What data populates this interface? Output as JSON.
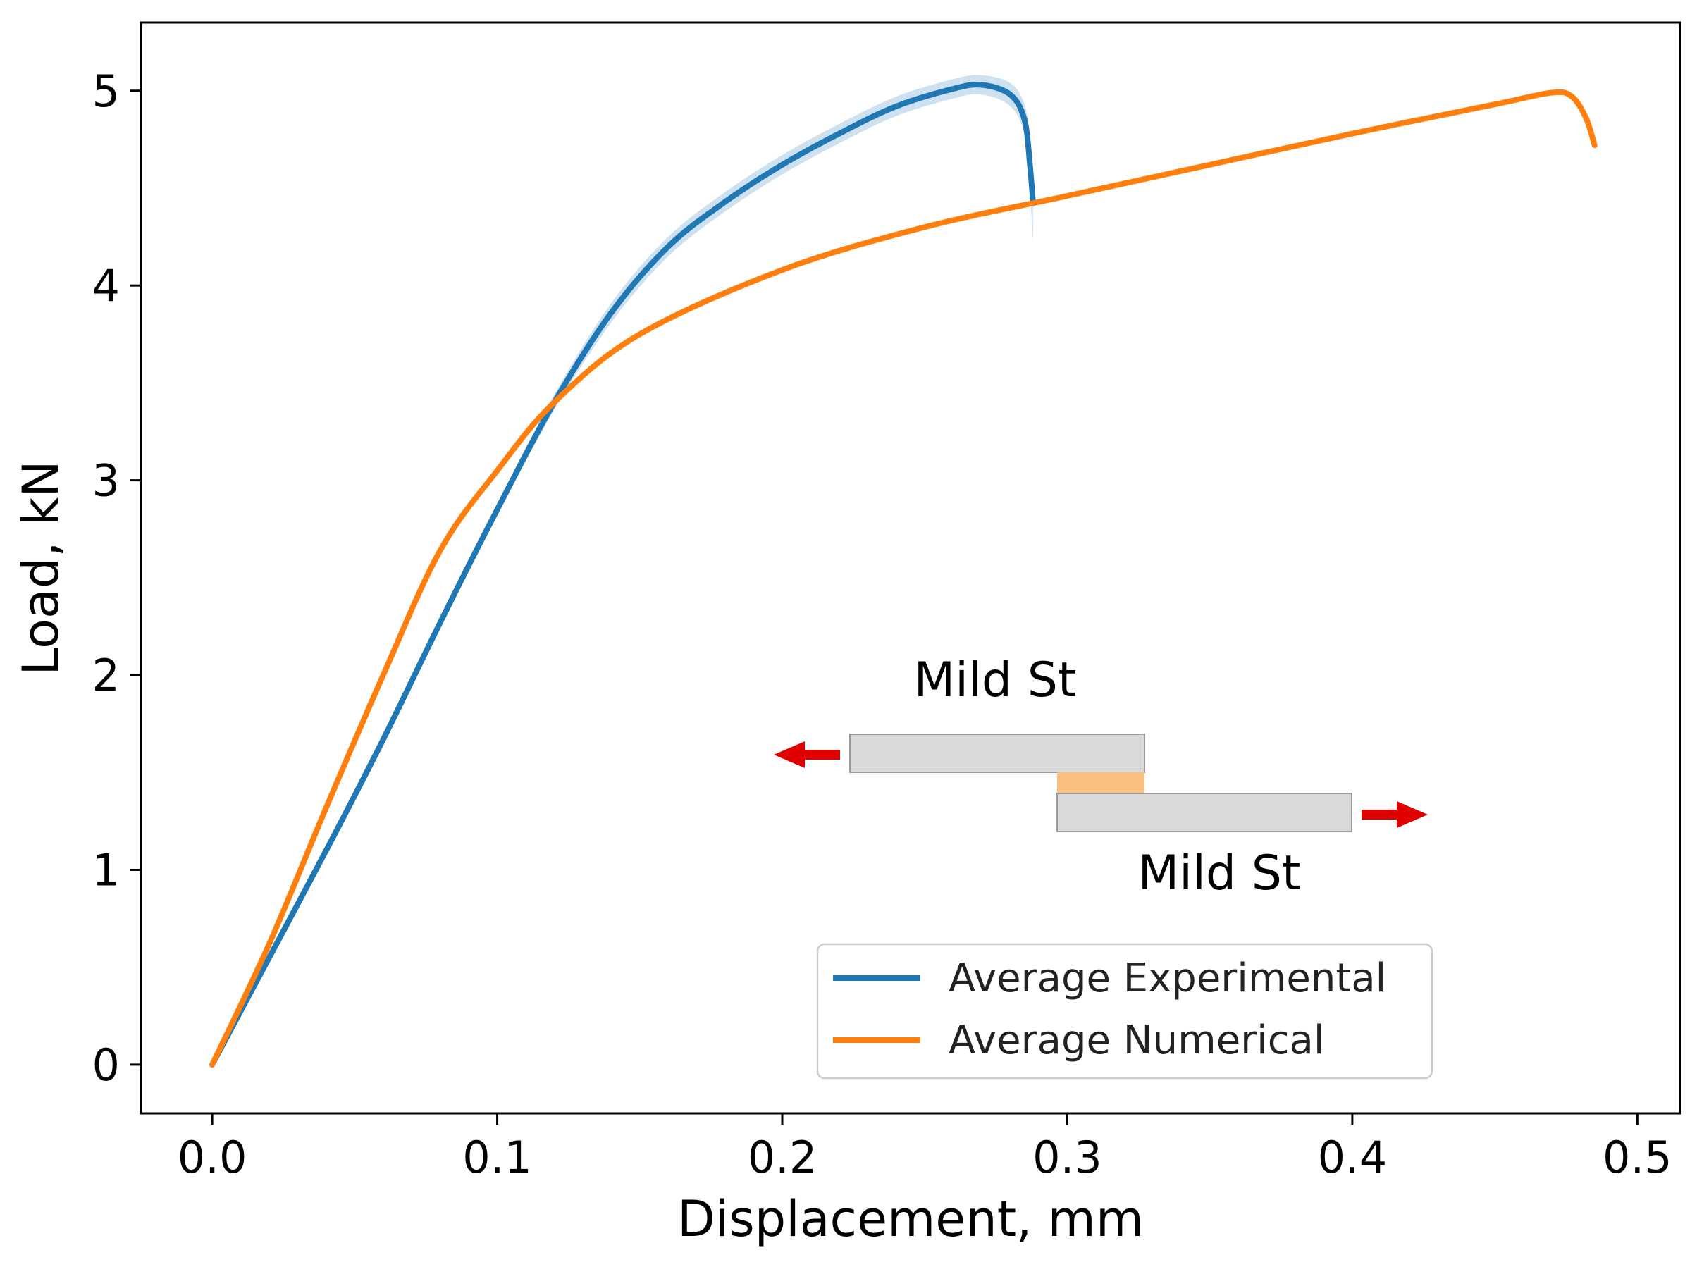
{
  "chart_data": {
    "type": "line",
    "title": "",
    "xlabel": "Displacement, mm",
    "ylabel": "Load, kN",
    "xlim": [
      -0.025,
      0.515
    ],
    "ylim": [
      -0.25,
      5.35
    ],
    "xticks": [
      0.0,
      0.1,
      0.2,
      0.3,
      0.4,
      0.5
    ],
    "xtick_labels": [
      "0.0",
      "0.1",
      "0.2",
      "0.3",
      "0.4",
      "0.5"
    ],
    "yticks": [
      0,
      1,
      2,
      3,
      4,
      5
    ],
    "ytick_labels": [
      "0",
      "1",
      "2",
      "3",
      "4",
      "5"
    ],
    "grid": false,
    "legend_position": "lower-right",
    "series": [
      {
        "name": "Average Experimental",
        "color": "#1f77b4",
        "band_color": "#c6dcef",
        "x": [
          0.0,
          0.02,
          0.04,
          0.06,
          0.08,
          0.1,
          0.12,
          0.14,
          0.16,
          0.18,
          0.2,
          0.22,
          0.24,
          0.26,
          0.27,
          0.28,
          0.285,
          0.287,
          0.288
        ],
        "y": [
          0.0,
          0.55,
          1.1,
          1.67,
          2.27,
          2.85,
          3.4,
          3.86,
          4.2,
          4.43,
          4.62,
          4.78,
          4.92,
          5.01,
          5.03,
          4.98,
          4.85,
          4.6,
          4.42
        ],
        "band": [
          0.0,
          0.01,
          0.02,
          0.02,
          0.03,
          0.03,
          0.04,
          0.05,
          0.05,
          0.05,
          0.05,
          0.05,
          0.05,
          0.05,
          0.05,
          0.06,
          0.08,
          0.15,
          0.2
        ]
      },
      {
        "name": "Average Numerical",
        "color": "#ff7f0e",
        "x": [
          0.0,
          0.02,
          0.04,
          0.06,
          0.08,
          0.1,
          0.12,
          0.15,
          0.2,
          0.25,
          0.3,
          0.35,
          0.4,
          0.45,
          0.47,
          0.477,
          0.482,
          0.485
        ],
        "y": [
          0.0,
          0.62,
          1.32,
          2.0,
          2.64,
          3.05,
          3.4,
          3.75,
          4.08,
          4.3,
          4.46,
          4.62,
          4.78,
          4.93,
          4.99,
          4.97,
          4.86,
          4.72
        ]
      }
    ],
    "inset": {
      "top_label": "Mild St",
      "bottom_label": "Mild St",
      "plate_color": "#d9d9d9",
      "adhesive_color": "#f9bf7f",
      "arrow_color": "#e00000"
    }
  }
}
